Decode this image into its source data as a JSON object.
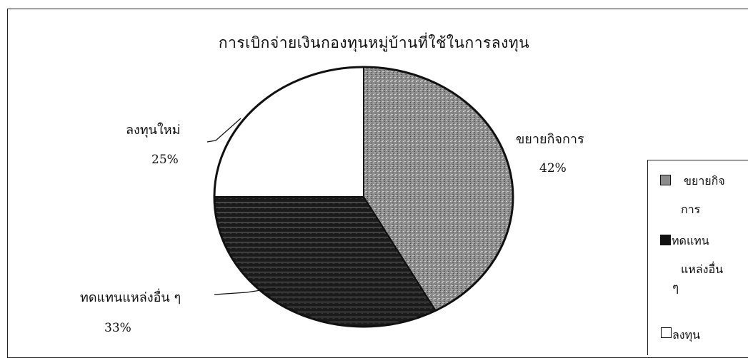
{
  "chart_data": {
    "type": "pie",
    "title": "การเบิกจ่ายเงินกองทุนหมู่บ้านที่ใช้ในการลงทุน",
    "slices": [
      {
        "label": "ขยายกิจการ",
        "value": 42,
        "percent_label": "42%",
        "color": "#9a9a9a",
        "pattern": "stipple"
      },
      {
        "label": "ทดแทนแหล่งอื่น ๆ",
        "value": 33,
        "percent_label": "33%",
        "color": "#1a1a1a",
        "pattern": "striped"
      },
      {
        "label": "ลงทุนใหม่",
        "value": 25,
        "percent_label": "25%",
        "color": "#ffffff",
        "pattern": "none"
      }
    ],
    "legend": {
      "placement": "right",
      "entries": [
        {
          "lines": [
            "ขยายกิจ",
            "การ"
          ]
        },
        {
          "lines": [
            "ทดแทน",
            "แหล่งอื่น",
            "ๆ"
          ]
        },
        {
          "lines": [
            "ลงทุน"
          ]
        }
      ]
    }
  }
}
